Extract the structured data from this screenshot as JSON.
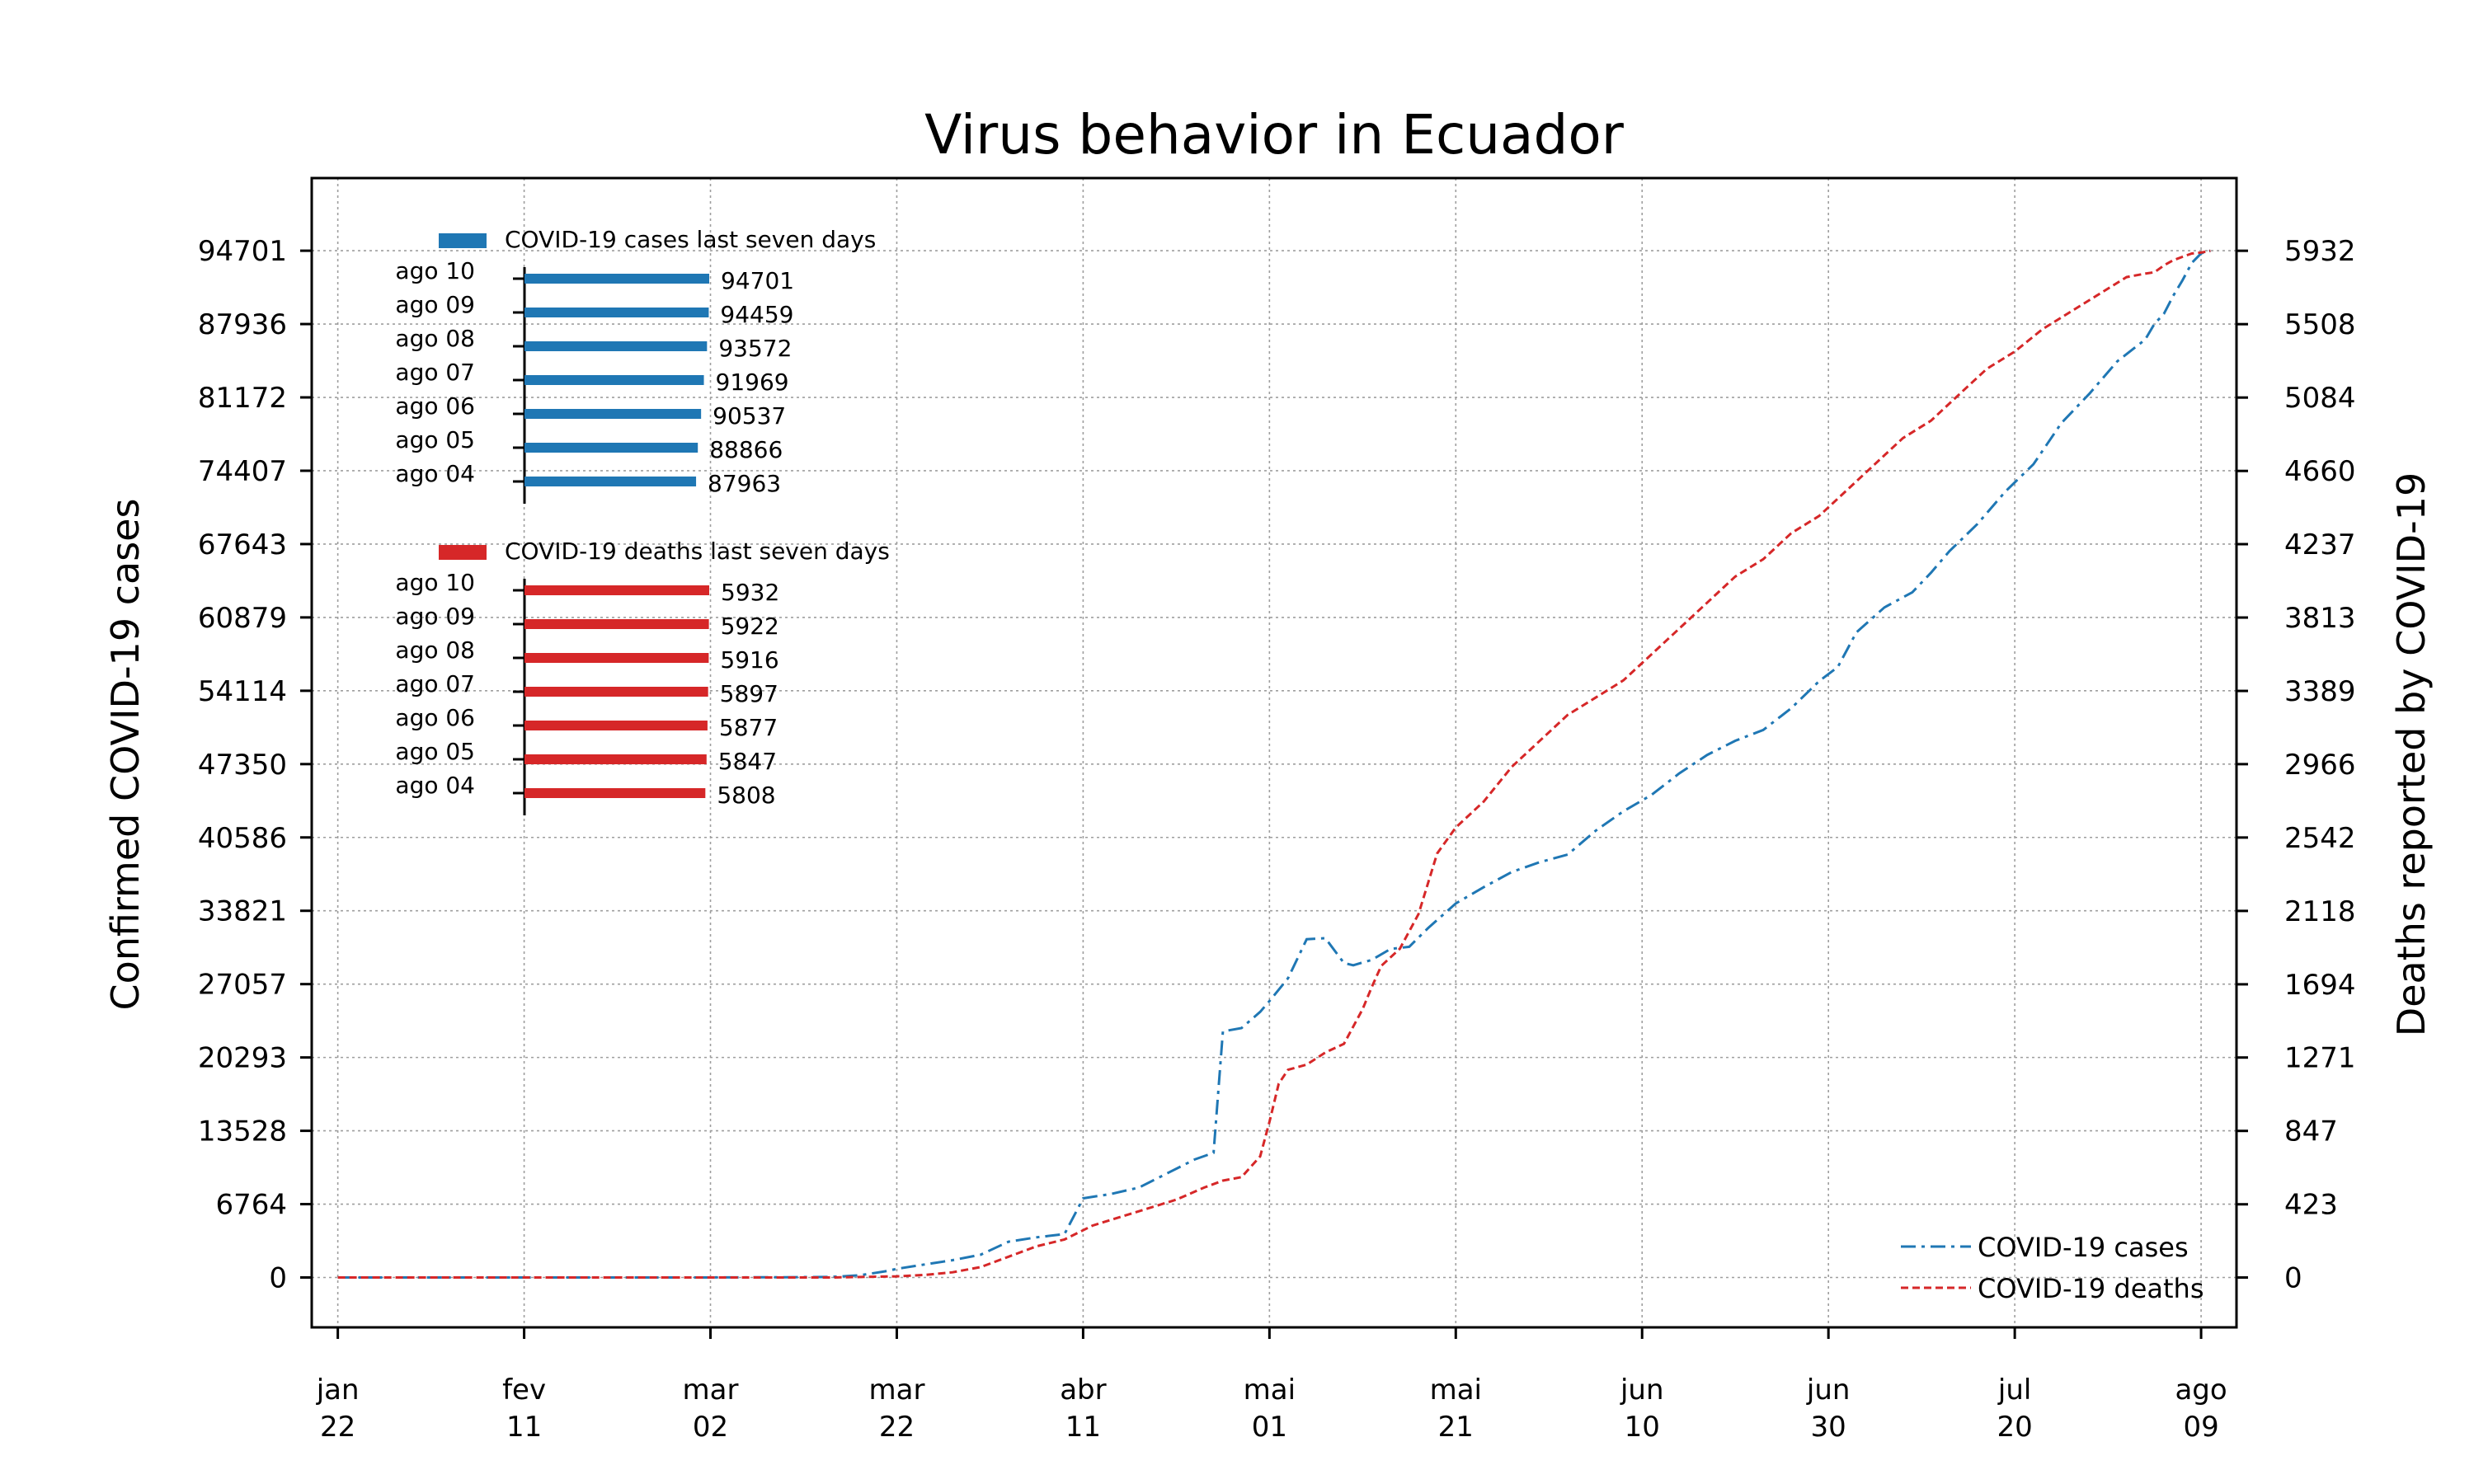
{
  "chart_data": {
    "type": "line",
    "title": "Virus behavior in Ecuador",
    "ylabel": "Confirmed COVID-19 cases",
    "y2label": "Deaths reported by COVID-19",
    "xlabel": "",
    "grid": true,
    "legend_placement": "bottom-right",
    "x_range": [
      "2020-01-22",
      "2020-08-10"
    ],
    "ylim": [
      -4600,
      101400
    ],
    "y2lim": [
      -288,
      6352
    ],
    "yticks": [
      0,
      6764,
      13528,
      20293,
      27057,
      33821,
      40586,
      47350,
      54114,
      60879,
      67643,
      74407,
      81172,
      87936,
      94701
    ],
    "y2ticks": [
      0,
      423,
      847,
      1271,
      1694,
      2118,
      2542,
      2966,
      3389,
      3813,
      4237,
      4660,
      5084,
      5508,
      5932
    ],
    "xticks": [
      {
        "date": "2020-01-22",
        "line1": "jan",
        "line2": "22"
      },
      {
        "date": "2020-02-11",
        "line1": "fev",
        "line2": "11"
      },
      {
        "date": "2020-03-02",
        "line1": "mar",
        "line2": "02"
      },
      {
        "date": "2020-03-22",
        "line1": "mar",
        "line2": "22"
      },
      {
        "date": "2020-04-11",
        "line1": "abr",
        "line2": "11"
      },
      {
        "date": "2020-05-01",
        "line1": "mai",
        "line2": "01"
      },
      {
        "date": "2020-05-21",
        "line1": "mai",
        "line2": "21"
      },
      {
        "date": "2020-06-10",
        "line1": "jun",
        "line2": "10"
      },
      {
        "date": "2020-06-30",
        "line1": "jun",
        "line2": "30"
      },
      {
        "date": "2020-07-20",
        "line1": "jul",
        "line2": "20"
      },
      {
        "date": "2020-08-09",
        "line1": "ago",
        "line2": "09"
      }
    ],
    "series": [
      {
        "name": "COVID-19 cases",
        "axis": "left",
        "color": "#1f77b4",
        "dash": "dashdot",
        "points": [
          [
            "2020-01-22",
            0
          ],
          [
            "2020-02-29",
            0
          ],
          [
            "2020-03-10",
            20
          ],
          [
            "2020-03-15",
            50
          ],
          [
            "2020-03-18",
            200
          ],
          [
            "2020-03-21",
            600
          ],
          [
            "2020-03-22",
            800
          ],
          [
            "2020-03-25",
            1200
          ],
          [
            "2020-03-28",
            1600
          ],
          [
            "2020-03-31",
            2100
          ],
          [
            "2020-04-03",
            3300
          ],
          [
            "2020-04-06",
            3700
          ],
          [
            "2020-04-09",
            4000
          ],
          [
            "2020-04-11",
            7300
          ],
          [
            "2020-04-14",
            7700
          ],
          [
            "2020-04-17",
            8300
          ],
          [
            "2020-04-20",
            9600
          ],
          [
            "2020-04-23",
            10900
          ],
          [
            "2020-04-25",
            11500
          ],
          [
            "2020-04-26",
            22700
          ],
          [
            "2020-04-28",
            23000
          ],
          [
            "2020-04-30",
            24500
          ],
          [
            "2020-05-01",
            25500
          ],
          [
            "2020-05-03",
            27600
          ],
          [
            "2020-05-05",
            31200
          ],
          [
            "2020-05-07",
            31300
          ],
          [
            "2020-05-09",
            29000
          ],
          [
            "2020-05-10",
            28800
          ],
          [
            "2020-05-12",
            29300
          ],
          [
            "2020-05-14",
            30300
          ],
          [
            "2020-05-16",
            30500
          ],
          [
            "2020-05-18",
            32200
          ],
          [
            "2020-05-21",
            34500
          ],
          [
            "2020-05-24",
            36000
          ],
          [
            "2020-05-27",
            37400
          ],
          [
            "2020-05-30",
            38300
          ],
          [
            "2020-06-02",
            39000
          ],
          [
            "2020-06-05",
            41200
          ],
          [
            "2020-06-08",
            43000
          ],
          [
            "2020-06-11",
            44500
          ],
          [
            "2020-06-14",
            46500
          ],
          [
            "2020-06-17",
            48200
          ],
          [
            "2020-06-20",
            49500
          ],
          [
            "2020-06-23",
            50500
          ],
          [
            "2020-06-26",
            52500
          ],
          [
            "2020-06-29",
            55000
          ],
          [
            "2020-07-01",
            56300
          ],
          [
            "2020-07-03",
            59500
          ],
          [
            "2020-07-06",
            61800
          ],
          [
            "2020-07-09",
            63200
          ],
          [
            "2020-07-11",
            65000
          ],
          [
            "2020-07-13",
            67000
          ],
          [
            "2020-07-16",
            69500
          ],
          [
            "2020-07-19",
            72500
          ],
          [
            "2020-07-22",
            75000
          ],
          [
            "2020-07-25",
            78800
          ],
          [
            "2020-07-28",
            81500
          ],
          [
            "2020-07-31",
            84500
          ],
          [
            "2020-08-03",
            86500
          ],
          [
            "2020-08-04",
            87963
          ],
          [
            "2020-08-05",
            88866
          ],
          [
            "2020-08-06",
            90537
          ],
          [
            "2020-08-07",
            91969
          ],
          [
            "2020-08-08",
            93572
          ],
          [
            "2020-08-09",
            94459
          ],
          [
            "2020-08-10",
            94701
          ]
        ]
      },
      {
        "name": "COVID-19 deaths",
        "axis": "right",
        "color": "#d62728",
        "dash": "dashed",
        "points": [
          [
            "2020-01-22",
            0
          ],
          [
            "2020-03-15",
            0
          ],
          [
            "2020-03-22",
            7
          ],
          [
            "2020-03-25",
            15
          ],
          [
            "2020-03-28",
            30
          ],
          [
            "2020-03-31",
            60
          ],
          [
            "2020-04-03",
            120
          ],
          [
            "2020-04-06",
            180
          ],
          [
            "2020-04-09",
            220
          ],
          [
            "2020-04-12",
            300
          ],
          [
            "2020-04-15",
            350
          ],
          [
            "2020-04-18",
            400
          ],
          [
            "2020-04-21",
            450
          ],
          [
            "2020-04-24",
            520
          ],
          [
            "2020-04-26",
            560
          ],
          [
            "2020-04-28",
            580
          ],
          [
            "2020-04-29",
            640
          ],
          [
            "2020-04-30",
            700
          ],
          [
            "2020-05-01",
            900
          ],
          [
            "2020-05-02",
            1120
          ],
          [
            "2020-05-03",
            1200
          ],
          [
            "2020-05-05",
            1230
          ],
          [
            "2020-05-07",
            1300
          ],
          [
            "2020-05-09",
            1350
          ],
          [
            "2020-05-11",
            1550
          ],
          [
            "2020-05-12",
            1680
          ],
          [
            "2020-05-13",
            1800
          ],
          [
            "2020-05-15",
            1900
          ],
          [
            "2020-05-17",
            2100
          ],
          [
            "2020-05-19",
            2450
          ],
          [
            "2020-05-21",
            2600
          ],
          [
            "2020-05-24",
            2750
          ],
          [
            "2020-05-27",
            2950
          ],
          [
            "2020-05-30",
            3100
          ],
          [
            "2020-06-02",
            3250
          ],
          [
            "2020-06-05",
            3350
          ],
          [
            "2020-06-08",
            3450
          ],
          [
            "2020-06-11",
            3600
          ],
          [
            "2020-06-14",
            3750
          ],
          [
            "2020-06-17",
            3900
          ],
          [
            "2020-06-20",
            4050
          ],
          [
            "2020-06-23",
            4150
          ],
          [
            "2020-06-26",
            4300
          ],
          [
            "2020-06-29",
            4400
          ],
          [
            "2020-07-02",
            4550
          ],
          [
            "2020-07-05",
            4700
          ],
          [
            "2020-07-08",
            4850
          ],
          [
            "2020-07-11",
            4950
          ],
          [
            "2020-07-14",
            5100
          ],
          [
            "2020-07-17",
            5250
          ],
          [
            "2020-07-20",
            5350
          ],
          [
            "2020-07-23",
            5480
          ],
          [
            "2020-07-26",
            5580
          ],
          [
            "2020-07-29",
            5680
          ],
          [
            "2020-08-01",
            5780
          ],
          [
            "2020-08-03",
            5800
          ],
          [
            "2020-08-04",
            5808
          ],
          [
            "2020-08-05",
            5847
          ],
          [
            "2020-08-06",
            5877
          ],
          [
            "2020-08-07",
            5897
          ],
          [
            "2020-08-08",
            5916
          ],
          [
            "2020-08-09",
            5922
          ],
          [
            "2020-08-10",
            5932
          ]
        ]
      }
    ],
    "insets": [
      {
        "title": "COVID-19 cases last seven days",
        "color": "#1f77b4",
        "xlim": [
          0,
          94701
        ],
        "categories": [
          "ago 10",
          "ago 09",
          "ago 08",
          "ago 07",
          "ago 06",
          "ago 05",
          "ago 04"
        ],
        "values": [
          94701,
          94459,
          93572,
          91969,
          90537,
          88866,
          87963
        ],
        "labels": [
          "94701",
          "94459",
          "93572",
          "91969",
          "90537",
          "88866",
          "87963"
        ]
      },
      {
        "title": "COVID-19 deaths last seven days",
        "color": "#d62728",
        "xlim": [
          0,
          5932
        ],
        "categories": [
          "ago 10",
          "ago 09",
          "ago 08",
          "ago 07",
          "ago 06",
          "ago 05",
          "ago 04"
        ],
        "values": [
          5932,
          5922,
          5916,
          5897,
          5877,
          5847,
          5808
        ],
        "labels": [
          "5932",
          "5922",
          "5916",
          "5897",
          "5877",
          "5847",
          "5808"
        ]
      }
    ]
  }
}
